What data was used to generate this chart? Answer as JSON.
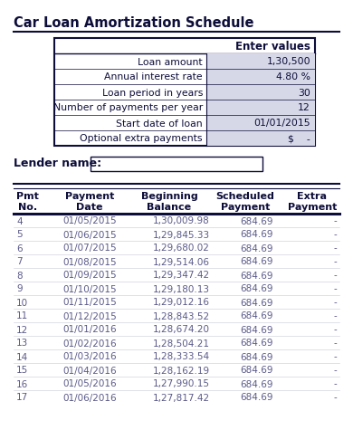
{
  "title": "Car Loan Amortization Schedule",
  "bg_color": "#ffffff",
  "title_color": "#0d0d3a",
  "input_table": {
    "header": "Enter values",
    "rows": [
      [
        "Loan amount",
        "1,30,500"
      ],
      [
        "Annual interest rate",
        "4.80 %"
      ],
      [
        "Loan period in years",
        "30"
      ],
      [
        "Number of payments per year",
        "12"
      ],
      [
        "Start date of loan",
        "01/01/2015"
      ],
      [
        "Optional extra payments",
        "$    -"
      ]
    ]
  },
  "lender_label": "Lender name:",
  "schedule_headers": [
    "Pmt\nNo.",
    "Payment\nDate",
    "Beginning\nBalance",
    "Scheduled\nPayment",
    "Extra\nPayment"
  ],
  "schedule_data": [
    [
      "4",
      "01/05/2015",
      "1,30,009.98",
      "684.69",
      "-"
    ],
    [
      "5",
      "01/06/2015",
      "1,29,845.33",
      "684.69",
      "-"
    ],
    [
      "6",
      "01/07/2015",
      "1,29,680.02",
      "684.69",
      "-"
    ],
    [
      "7",
      "01/08/2015",
      "1,29,514.06",
      "684.69",
      "-"
    ],
    [
      "8",
      "01/09/2015",
      "1,29,347.42",
      "684.69",
      "-"
    ],
    [
      "9",
      "01/10/2015",
      "1,29,180.13",
      "684.69",
      "-"
    ],
    [
      "10",
      "01/11/2015",
      "1,29,012.16",
      "684.69",
      "-"
    ],
    [
      "11",
      "01/12/2015",
      "1,28,843.52",
      "684.69",
      "-"
    ],
    [
      "12",
      "01/01/2016",
      "1,28,674.20",
      "684.69",
      "-"
    ],
    [
      "13",
      "01/02/2016",
      "1,28,504.21",
      "684.69",
      "-"
    ],
    [
      "14",
      "01/03/2016",
      "1,28,333.54",
      "684.69",
      "-"
    ],
    [
      "15",
      "01/04/2016",
      "1,28,162.19",
      "684.69",
      "-"
    ],
    [
      "16",
      "01/05/2016",
      "1,27,990.15",
      "684.69",
      "-"
    ],
    [
      "17",
      "01/06/2016",
      "1,27,817.42",
      "684.69",
      "-"
    ]
  ],
  "border_color": "#0d0d3a",
  "input_cell_bg": "#d6d8e8",
  "table_text_color": "#5a5a8a",
  "sched_header_text": "#0d0d3a"
}
